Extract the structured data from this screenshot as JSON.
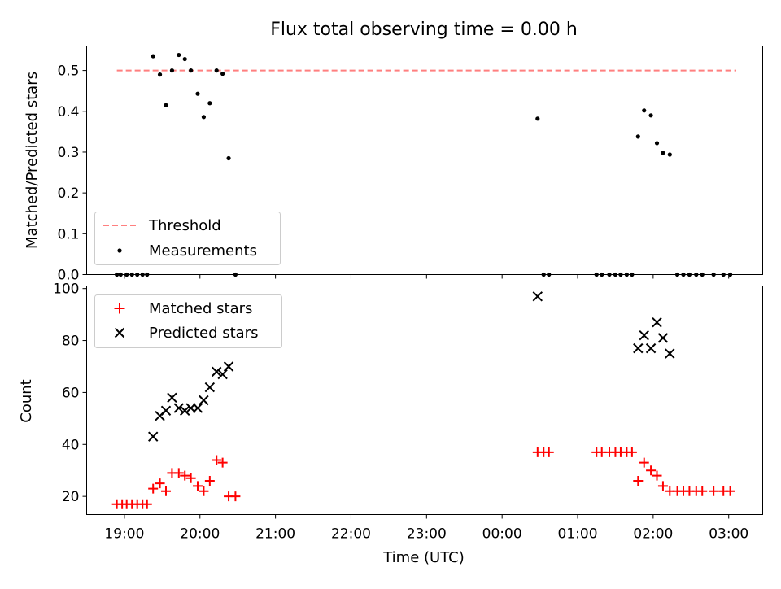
{
  "figure": {
    "title": "Flux total observing time = 0.00 h",
    "xlabel": "Time (UTC)",
    "x_tick_labels": [
      "19:00",
      "20:00",
      "21:00",
      "22:00",
      "23:00",
      "00:00",
      "01:00",
      "02:00",
      "03:00"
    ]
  },
  "colors": {
    "threshold": "#ff7f7f",
    "measurements": "#000000",
    "matched": "#ff0000",
    "predicted": "#000000"
  },
  "chart_data": [
    {
      "type": "scatter",
      "panel": "top",
      "ylabel": "Matched/Predicted stars",
      "x_unit": "hours since 19:00 UTC",
      "xlim": [
        -0.5,
        8.45
      ],
      "ylim": [
        0.0,
        0.56
      ],
      "y_ticks": [
        0.0,
        0.1,
        0.2,
        0.3,
        0.4,
        0.5
      ],
      "y_tick_labels": [
        "0.0",
        "0.1",
        "0.2",
        "0.3",
        "0.4",
        "0.5"
      ],
      "legend_position": "lower-left",
      "series": [
        {
          "name": "Threshold",
          "kind": "dashed-line",
          "x": [
            -0.1,
            8.1
          ],
          "y": [
            0.5,
            0.5
          ]
        },
        {
          "name": "Measurements",
          "kind": "dots",
          "points": [
            [
              -0.1,
              0.0
            ],
            [
              -0.05,
              0.0
            ],
            [
              0.03,
              0.0
            ],
            [
              0.1,
              0.0
            ],
            [
              0.17,
              0.0
            ],
            [
              0.24,
              0.0
            ],
            [
              0.3,
              0.0
            ],
            [
              0.38,
              0.535
            ],
            [
              0.47,
              0.49
            ],
            [
              0.55,
              0.415
            ],
            [
              0.63,
              0.5
            ],
            [
              0.72,
              0.538
            ],
            [
              0.8,
              0.528
            ],
            [
              0.88,
              0.5
            ],
            [
              0.97,
              0.443
            ],
            [
              1.05,
              0.386
            ],
            [
              1.13,
              0.42
            ],
            [
              1.22,
              0.5
            ],
            [
              1.3,
              0.492
            ],
            [
              1.38,
              0.285
            ],
            [
              1.47,
              0.0
            ],
            [
              5.47,
              0.382
            ],
            [
              5.55,
              0.0
            ],
            [
              5.62,
              0.0
            ],
            [
              6.25,
              0.0
            ],
            [
              6.32,
              0.0
            ],
            [
              6.42,
              0.0
            ],
            [
              6.5,
              0.0
            ],
            [
              6.57,
              0.0
            ],
            [
              6.65,
              0.0
            ],
            [
              6.72,
              0.0
            ],
            [
              6.8,
              0.338
            ],
            [
              6.88,
              0.402
            ],
            [
              6.97,
              0.39
            ],
            [
              7.05,
              0.322
            ],
            [
              7.13,
              0.298
            ],
            [
              7.22,
              0.294
            ],
            [
              7.32,
              0.0
            ],
            [
              7.4,
              0.0
            ],
            [
              7.48,
              0.0
            ],
            [
              7.57,
              0.0
            ],
            [
              7.65,
              0.0
            ],
            [
              7.8,
              0.0
            ],
            [
              7.93,
              0.0
            ],
            [
              8.02,
              0.0
            ]
          ]
        }
      ]
    },
    {
      "type": "scatter",
      "panel": "bottom",
      "ylabel": "Count",
      "x_unit": "hours since 19:00 UTC",
      "xlim": [
        -0.5,
        8.45
      ],
      "ylim": [
        13,
        101
      ],
      "y_ticks": [
        20,
        40,
        60,
        80,
        100
      ],
      "y_tick_labels": [
        "20",
        "40",
        "60",
        "80",
        "100"
      ],
      "legend_position": "upper-left",
      "series": [
        {
          "name": "Matched stars",
          "marker": "plus",
          "points": [
            [
              -0.1,
              17
            ],
            [
              -0.03,
              17
            ],
            [
              0.03,
              17
            ],
            [
              0.1,
              17
            ],
            [
              0.17,
              17
            ],
            [
              0.24,
              17
            ],
            [
              0.3,
              17
            ],
            [
              0.38,
              23
            ],
            [
              0.47,
              25
            ],
            [
              0.55,
              22
            ],
            [
              0.63,
              29
            ],
            [
              0.72,
              29
            ],
            [
              0.8,
              28
            ],
            [
              0.88,
              27
            ],
            [
              0.97,
              24
            ],
            [
              1.05,
              22
            ],
            [
              1.13,
              26
            ],
            [
              1.22,
              34
            ],
            [
              1.3,
              33
            ],
            [
              1.38,
              20
            ],
            [
              1.47,
              20
            ],
            [
              5.47,
              37
            ],
            [
              5.55,
              37
            ],
            [
              5.62,
              37
            ],
            [
              6.25,
              37
            ],
            [
              6.32,
              37
            ],
            [
              6.42,
              37
            ],
            [
              6.5,
              37
            ],
            [
              6.57,
              37
            ],
            [
              6.65,
              37
            ],
            [
              6.72,
              37
            ],
            [
              6.8,
              26
            ],
            [
              6.88,
              33
            ],
            [
              6.97,
              30
            ],
            [
              7.05,
              28
            ],
            [
              7.13,
              24
            ],
            [
              7.22,
              22
            ],
            [
              7.32,
              22
            ],
            [
              7.4,
              22
            ],
            [
              7.48,
              22
            ],
            [
              7.57,
              22
            ],
            [
              7.65,
              22
            ],
            [
              7.8,
              22
            ],
            [
              7.93,
              22
            ],
            [
              8.02,
              22
            ]
          ]
        },
        {
          "name": "Predicted stars",
          "marker": "x",
          "points": [
            [
              0.38,
              43
            ],
            [
              0.47,
              51
            ],
            [
              0.55,
              53
            ],
            [
              0.63,
              58
            ],
            [
              0.72,
              54
            ],
            [
              0.8,
              53
            ],
            [
              0.88,
              54
            ],
            [
              0.97,
              54
            ],
            [
              1.05,
              57
            ],
            [
              1.13,
              62
            ],
            [
              1.22,
              68
            ],
            [
              1.3,
              67
            ],
            [
              1.38,
              70
            ],
            [
              5.47,
              97
            ],
            [
              6.8,
              77
            ],
            [
              6.88,
              82
            ],
            [
              6.97,
              77
            ],
            [
              7.05,
              87
            ],
            [
              7.13,
              81
            ],
            [
              7.22,
              75
            ]
          ]
        }
      ]
    }
  ]
}
